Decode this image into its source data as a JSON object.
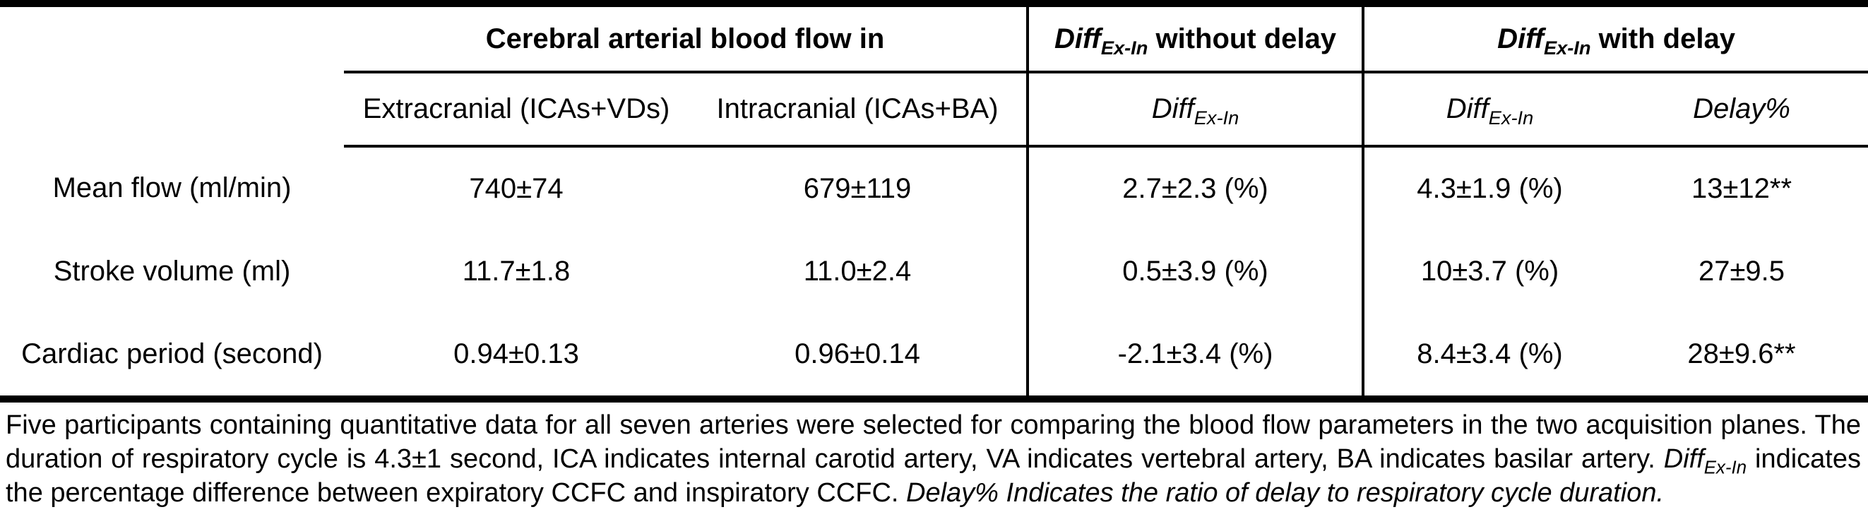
{
  "table": {
    "diff": {
      "base": "Diff",
      "sub": "Ex-In"
    },
    "group_headers": {
      "blood_flow": "Cerebral arterial blood flow in",
      "without_delay_rest": " without delay",
      "with_delay_rest": " with delay"
    },
    "column_headers": {
      "extracranial": "Extracranial (ICAs+VDs)",
      "intracranial": "Intracranial (ICAs+BA)",
      "delay": "Delay%"
    },
    "rows": [
      {
        "label": "Mean flow (ml/min)",
        "extracranial": "740±74",
        "intracranial": "679±119",
        "diff_without_delay": "2.7±2.3 (%)",
        "diff_with_delay": "4.3±1.9 (%)",
        "delay_percent": "13±12**"
      },
      {
        "label": "Stroke volume (ml)",
        "extracranial": "11.7±1.8",
        "intracranial": "11.0±2.4",
        "diff_without_delay": "0.5±3.9 (%)",
        "diff_with_delay": "10±3.7 (%)",
        "delay_percent": "27±9.5"
      },
      {
        "label": "Cardiac period (second)",
        "extracranial": "0.94±0.13",
        "intracranial": "0.96±0.14",
        "diff_without_delay": "-2.1±3.4 (%)",
        "diff_with_delay": "8.4±3.4 (%)",
        "delay_percent": "28±9.6**"
      }
    ]
  },
  "footnote": {
    "segments": [
      {
        "text": "Five participants containing quantitative data for all seven arteries were selected for comparing the blood flow parameters in the two acquisition planes. The duration of respiratory cycle is 4.3±1 second, ICA indicates internal carotid artery, VA indicates vertebral artery, BA indicates basilar artery. ",
        "italic": false
      },
      {
        "text": "Diff",
        "italic": true
      },
      {
        "text": "Ex-In",
        "italic": true,
        "sub": true
      },
      {
        "text": " indicates the percentage difference between expiratory CCFC and inspiratory CCFC. ",
        "italic": false
      },
      {
        "text": "Delay% Indicates the ratio of delay to respiratory cycle duration.",
        "italic": true
      }
    ]
  },
  "colors": {
    "text": "#000000",
    "background": "#ffffff",
    "border": "#000000"
  }
}
